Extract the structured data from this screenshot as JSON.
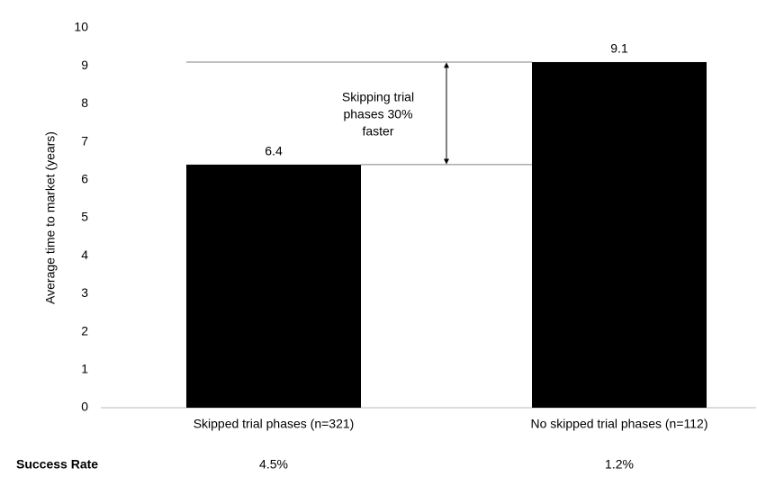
{
  "chart_data": {
    "type": "bar",
    "categories": [
      "Skipped trial phases (n=321)",
      "No skipped trial phases (n=112)"
    ],
    "values": [
      6.4,
      9.1
    ],
    "color": "#000000",
    "y_label": "Average time to market (years)",
    "ylim": [
      0,
      10
    ],
    "yticks": [
      0,
      1,
      2,
      3,
      4,
      5,
      6,
      7,
      8,
      9,
      10
    ],
    "grid": false,
    "annotation": [
      "Skipping trial",
      "phases 30%",
      "faster"
    ],
    "success_rate": {
      "label": "Success Rate",
      "values": [
        4.5,
        1.2
      ],
      "value_labels": [
        "4.5%",
        "1.2%"
      ]
    }
  }
}
